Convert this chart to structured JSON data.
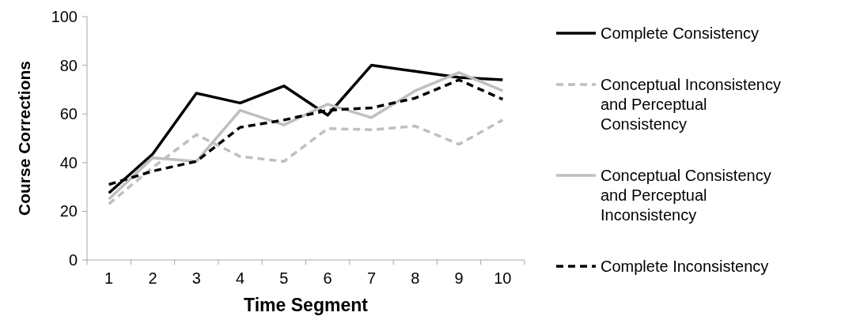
{
  "chart_data": {
    "type": "line",
    "xlabel": "Time Segment",
    "ylabel": "Course Corrections",
    "categories": [
      "1",
      "2",
      "3",
      "4",
      "5",
      "6",
      "7",
      "8",
      "9",
      "10"
    ],
    "ylim": [
      0,
      100
    ],
    "yticks": [
      0,
      20,
      40,
      60,
      80,
      100
    ],
    "grid": false,
    "legend": "right",
    "marker": "none",
    "series": [
      {
        "name": "Complete Consistency",
        "color": "#000000",
        "line_style": "solid",
        "values": [
          27.5,
          43.5,
          68.5,
          64.5,
          71.5,
          59.5,
          80,
          77.5,
          75,
          74
        ]
      },
      {
        "name": "Conceptual Inconsistency and Perceptual Consistency",
        "color": "#bfbfbf",
        "line_style": "dashed",
        "values": [
          23,
          38,
          51.5,
          42.5,
          40.5,
          54,
          53.5,
          55,
          47.5,
          57.5
        ]
      },
      {
        "name": "Conceptual Consistency and Perceptual Inconsistency",
        "color": "#bfbfbf",
        "line_style": "solid",
        "values": [
          25,
          42,
          40.5,
          61.5,
          55.5,
          64,
          58.5,
          69.5,
          77,
          69.5
        ]
      },
      {
        "name": "Complete Inconsistency",
        "color": "#000000",
        "line_style": "dashed",
        "values": [
          31,
          36.5,
          40.5,
          54.5,
          57.5,
          61.5,
          62.5,
          66.5,
          74,
          66
        ]
      }
    ]
  }
}
